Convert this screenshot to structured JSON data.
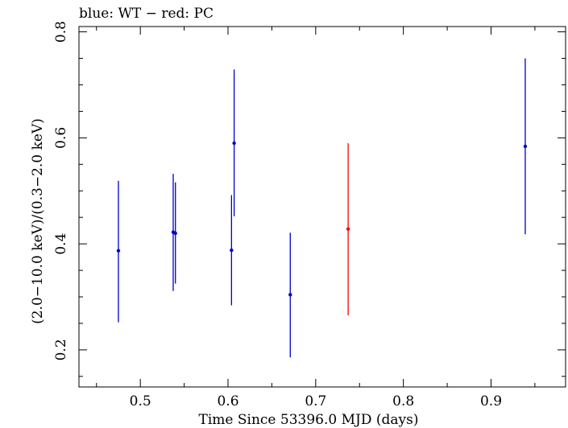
{
  "header": {
    "title": "blue: WT − red: PC"
  },
  "chart_data": {
    "type": "scatter",
    "title": "blue: WT − red: PC",
    "xlabel": "Time Since 53396.0 MJD (days)",
    "ylabel": "(2.0−10.0 keV)/(0.3−2.0 keV)",
    "xlim": [
      0.43,
      0.985
    ],
    "ylim": [
      0.13,
      0.81
    ],
    "xticks": [
      {
        "value": 0.5,
        "label": "0.5"
      },
      {
        "value": 0.6,
        "label": "0.6"
      },
      {
        "value": 0.7,
        "label": "0.7"
      },
      {
        "value": 0.8,
        "label": "0.8"
      },
      {
        "value": 0.9,
        "label": "0.9"
      }
    ],
    "yticks": [
      {
        "value": 0.2,
        "label": "0.2"
      },
      {
        "value": 0.4,
        "label": "0.4"
      },
      {
        "value": 0.6,
        "label": "0.6"
      },
      {
        "value": 0.8,
        "label": "0.8"
      }
    ],
    "grid": false,
    "series": [
      {
        "name": "WT",
        "color": "#0000cc",
        "points": [
          {
            "x": 0.475,
            "y": 0.387,
            "ylo": 0.252,
            "yhi": 0.519
          },
          {
            "x": 0.5375,
            "y": 0.422,
            "ylo": 0.311,
            "yhi": 0.532
          },
          {
            "x": 0.54,
            "y": 0.42,
            "ylo": 0.325,
            "yhi": 0.516
          },
          {
            "x": 0.604,
            "y": 0.388,
            "ylo": 0.284,
            "yhi": 0.492
          },
          {
            "x": 0.607,
            "y": 0.59,
            "ylo": 0.452,
            "yhi": 0.729
          },
          {
            "x": 0.671,
            "y": 0.304,
            "ylo": 0.186,
            "yhi": 0.421
          },
          {
            "x": 0.939,
            "y": 0.584,
            "ylo": 0.418,
            "yhi": 0.75
          }
        ]
      },
      {
        "name": "PC",
        "color": "#ff0000",
        "points": [
          {
            "x": 0.737,
            "y": 0.428,
            "ylo": 0.265,
            "yhi": 0.59
          }
        ]
      }
    ]
  }
}
